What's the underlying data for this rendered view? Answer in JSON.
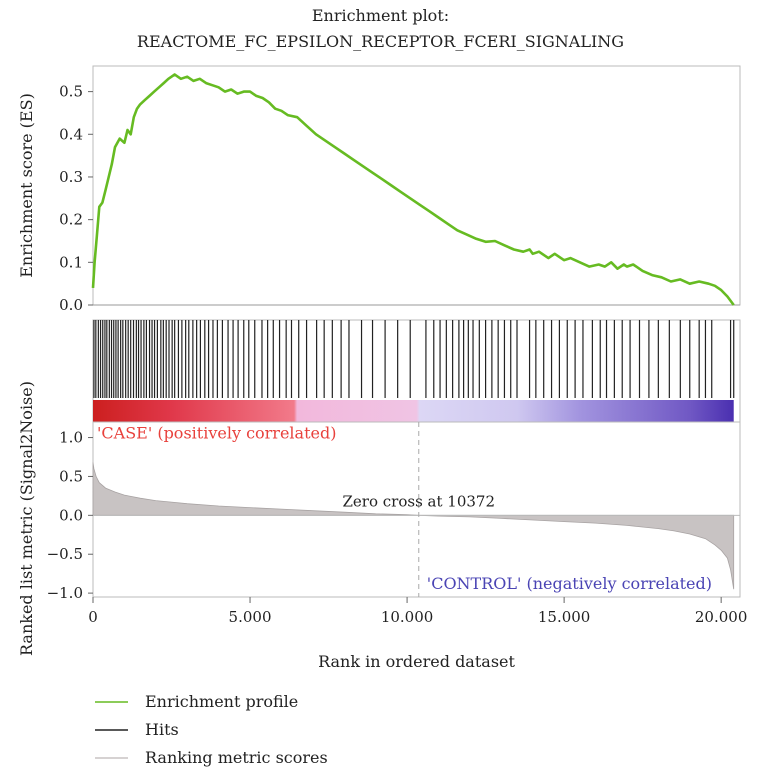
{
  "chart_data": {
    "type": "line",
    "title_line1": "Enrichment plot:",
    "title_line2": "REACTOME_FC_EPSILON_RECEPTOR_FCERI_SIGNALING",
    "es_panel": {
      "ylabel": "Enrichment score (ES)",
      "ylim": [
        0.0,
        0.56
      ],
      "yticks": [
        "0.0",
        "0.1",
        "0.2",
        "0.3",
        "0.4",
        "0.5"
      ],
      "ytick_values": [
        0.0,
        0.1,
        0.2,
        0.3,
        0.4,
        0.5
      ],
      "series": [
        {
          "name": "Enrichment profile",
          "color": "#66bb22",
          "x": [
            0,
            50,
            120,
            200,
            300,
            400,
            500,
            600,
            700,
            850,
            1000,
            1100,
            1200,
            1300,
            1400,
            1500,
            1650,
            1800,
            1950,
            2100,
            2250,
            2400,
            2500,
            2600,
            2700,
            2800,
            3000,
            3200,
            3400,
            3600,
            3800,
            4000,
            4200,
            4400,
            4600,
            4800,
            5000,
            5200,
            5400,
            5600,
            5800,
            6000,
            6200,
            6500,
            6800,
            7100,
            7400,
            7700,
            8000,
            8300,
            8600,
            8900,
            9200,
            9500,
            9800,
            10100,
            10400,
            10700,
            11000,
            11300,
            11600,
            11900,
            12200,
            12500,
            12800,
            13100,
            13400,
            13700,
            13900,
            14000,
            14200,
            14500,
            14700,
            15000,
            15200,
            15500,
            15800,
            16100,
            16300,
            16500,
            16700,
            16900,
            17000,
            17200,
            17500,
            17800,
            18100,
            18400,
            18700,
            19000,
            19300,
            19600,
            19800,
            20000,
            20200,
            20400
          ],
          "values": [
            0.04,
            0.1,
            0.16,
            0.23,
            0.24,
            0.27,
            0.3,
            0.33,
            0.37,
            0.39,
            0.38,
            0.41,
            0.4,
            0.44,
            0.46,
            0.47,
            0.48,
            0.49,
            0.5,
            0.51,
            0.52,
            0.53,
            0.535,
            0.54,
            0.535,
            0.53,
            0.535,
            0.525,
            0.53,
            0.52,
            0.515,
            0.51,
            0.5,
            0.505,
            0.495,
            0.5,
            0.5,
            0.49,
            0.485,
            0.475,
            0.46,
            0.455,
            0.445,
            0.44,
            0.42,
            0.4,
            0.385,
            0.37,
            0.355,
            0.34,
            0.325,
            0.31,
            0.295,
            0.28,
            0.265,
            0.25,
            0.235,
            0.22,
            0.205,
            0.19,
            0.175,
            0.165,
            0.155,
            0.148,
            0.15,
            0.14,
            0.13,
            0.125,
            0.13,
            0.12,
            0.125,
            0.11,
            0.12,
            0.105,
            0.11,
            0.1,
            0.09,
            0.095,
            0.09,
            0.1,
            0.085,
            0.095,
            0.09,
            0.095,
            0.08,
            0.07,
            0.065,
            0.055,
            0.06,
            0.05,
            0.055,
            0.05,
            0.045,
            0.035,
            0.02,
            0.0
          ]
        }
      ]
    },
    "hits": {
      "name": "Hits",
      "color": "#222222",
      "positions": [
        30,
        90,
        170,
        240,
        310,
        380,
        440,
        520,
        590,
        660,
        730,
        800,
        880,
        950,
        1040,
        1120,
        1200,
        1290,
        1380,
        1450,
        1530,
        1620,
        1700,
        1800,
        1880,
        1960,
        2050,
        2160,
        2240,
        2330,
        2420,
        2520,
        2600,
        2720,
        2830,
        2950,
        3050,
        3180,
        3300,
        3420,
        3560,
        3680,
        3820,
        3960,
        4120,
        4300,
        4460,
        4620,
        4800,
        4960,
        5150,
        5380,
        5560,
        5740,
        5940,
        6150,
        6320,
        6550,
        6800,
        7120,
        7360,
        7620,
        7900,
        8150,
        8550,
        8900,
        9300,
        9700,
        10100,
        10600,
        10850,
        11050,
        11250,
        11450,
        11650,
        11800,
        11950,
        12100,
        12300,
        12500,
        12700,
        12900,
        13100,
        13300,
        13500,
        13900,
        14100,
        14350,
        14600,
        14850,
        15100,
        15350,
        15600,
        15900,
        16150,
        16350,
        16600,
        16850,
        17100,
        17400,
        17700,
        18000,
        18350,
        18700,
        19000,
        19300,
        19500,
        19700,
        20300,
        20400
      ]
    },
    "color_bar": {
      "stops": [
        {
          "at": 0,
          "color": "#cc1f1f"
        },
        {
          "at": 2500,
          "color": "#e0384a"
        },
        {
          "at": 6400,
          "color": "#f27a8a"
        },
        {
          "at": 6500,
          "color": "#f2b8dc"
        },
        {
          "at": 10300,
          "color": "#f0c4e4"
        },
        {
          "at": 10400,
          "color": "#dcd7f5"
        },
        {
          "at": 13500,
          "color": "#cfc8f0"
        },
        {
          "at": 15500,
          "color": "#a294df"
        },
        {
          "at": 19000,
          "color": "#7058c4"
        },
        {
          "at": 20400,
          "color": "#4a2fb0"
        }
      ]
    },
    "metric_panel": {
      "ylabel": "Ranked list metric (Signal2Noise)",
      "ylim": [
        -1.05,
        1.2
      ],
      "yticks": [
        "1.0",
        "0.5",
        "0.0",
        "−0.5",
        "−1.0"
      ],
      "ytick_values": [
        1.0,
        0.5,
        0.0,
        -0.5,
        -1.0
      ],
      "series": [
        {
          "name": "Ranking metric scores",
          "color": "#c8c3c3",
          "x": [
            0,
            30,
            100,
            200,
            400,
            700,
            1000,
            1500,
            2000,
            2500,
            3000,
            4000,
            5000,
            6000,
            7000,
            8000,
            9000,
            10000,
            10372,
            11000,
            12000,
            13000,
            14000,
            15000,
            16000,
            17000,
            18000,
            18500,
            19000,
            19500,
            19800,
            20000,
            20200,
            20300,
            20400
          ],
          "values": [
            0.68,
            0.6,
            0.5,
            0.42,
            0.35,
            0.3,
            0.26,
            0.22,
            0.19,
            0.17,
            0.15,
            0.12,
            0.1,
            0.08,
            0.06,
            0.04,
            0.02,
            0.008,
            0.0,
            -0.01,
            -0.02,
            -0.04,
            -0.06,
            -0.08,
            -0.1,
            -0.13,
            -0.17,
            -0.2,
            -0.24,
            -0.3,
            -0.38,
            -0.45,
            -0.55,
            -0.7,
            -0.95
          ]
        }
      ],
      "annotations": {
        "case": "'CASE' (positively correlated)",
        "case_color": "#e8413c",
        "control": "'CONTROL' (negatively correlated)",
        "control_color": "#4a44b4",
        "zero_cross": "Zero cross at 10372",
        "zero_cross_x": 10372
      }
    },
    "xaxis": {
      "xlabel": "Rank in ordered dataset",
      "xlim": [
        0,
        20600
      ],
      "xticks": [
        "0",
        "5.000",
        "10.000",
        "15.000",
        "20.000"
      ],
      "xtick_values": [
        0,
        5000,
        10000,
        15000,
        20000
      ]
    },
    "legend": {
      "placement": "bottom-left",
      "items": [
        {
          "label": "Enrichment profile",
          "color": "#66bb22"
        },
        {
          "label": "Hits",
          "color": "#222222"
        },
        {
          "label": "Ranking metric scores",
          "color": "#c8c3c3"
        }
      ]
    }
  }
}
